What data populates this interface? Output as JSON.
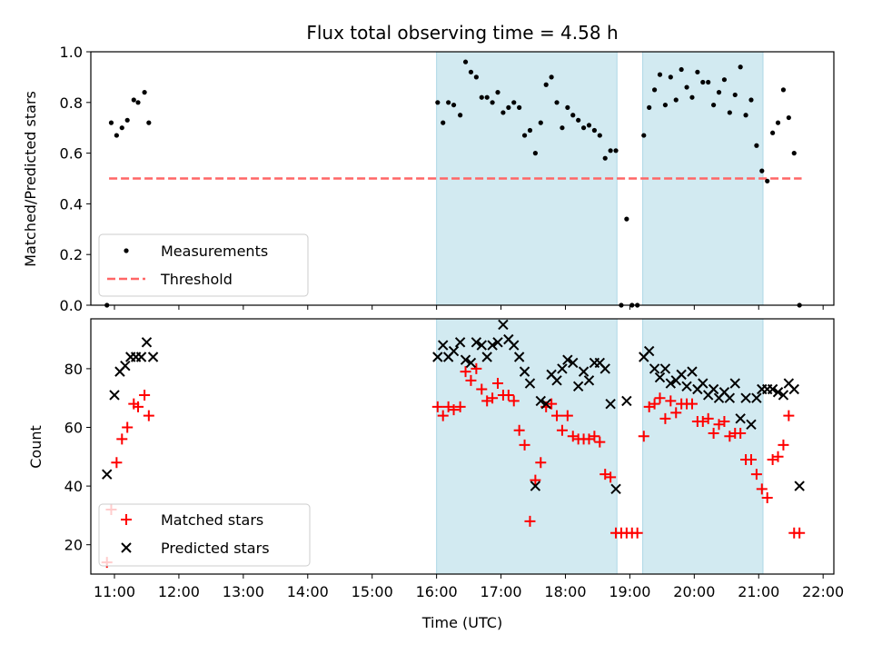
{
  "title": "Flux total observing time = 4.58 h",
  "colors": {
    "span": "#add8e6",
    "threshold": "#ff6666",
    "measurements": "#000000",
    "matched": "#ff0000",
    "predicted": "#000000"
  },
  "chart_data": [
    {
      "type": "scatter",
      "ylabel": "Matched/Predicted stars",
      "xlim": [
        "10:38",
        "22:10"
      ],
      "ylim": [
        0.0,
        1.0
      ],
      "yticks": [
        "0.0",
        "0.2",
        "0.4",
        "0.6",
        "0.8",
        "1.0"
      ],
      "legend": {
        "placement": "lower-left",
        "entries": [
          "Measurements",
          "Threshold"
        ]
      },
      "shaded_spans": [
        [
          "16:00",
          "18:48"
        ],
        [
          "19:12",
          "21:04"
        ]
      ],
      "threshold": {
        "value": 0.5,
        "x_range": [
          "10:55",
          "21:40"
        ]
      },
      "series": [
        {
          "name": "Measurements",
          "x": [
            "10:53",
            "10:57",
            "11:02",
            "11:07",
            "11:12",
            "11:18",
            "11:22",
            "11:28",
            "11:32",
            "16:01",
            "16:06",
            "16:11",
            "16:16",
            "16:22",
            "16:27",
            "16:32",
            "16:37",
            "16:42",
            "16:47",
            "16:52",
            "16:57",
            "17:02",
            "17:07",
            "17:12",
            "17:17",
            "17:22",
            "17:27",
            "17:32",
            "17:37",
            "17:42",
            "17:47",
            "17:52",
            "17:57",
            "18:02",
            "18:07",
            "18:12",
            "18:17",
            "18:22",
            "18:27",
            "18:32",
            "18:37",
            "18:42",
            "18:47",
            "18:52",
            "18:57",
            "19:02",
            "19:07",
            "19:13",
            "19:18",
            "19:23",
            "19:28",
            "19:33",
            "19:38",
            "19:43",
            "19:48",
            "19:53",
            "19:58",
            "20:03",
            "20:08",
            "20:13",
            "20:18",
            "20:23",
            "20:28",
            "20:33",
            "20:38",
            "20:43",
            "20:48",
            "20:53",
            "20:58",
            "21:03",
            "21:08",
            "21:13",
            "21:18",
            "21:23",
            "21:28",
            "21:33",
            "21:38"
          ],
          "y": [
            0.0,
            0.72,
            0.67,
            0.7,
            0.73,
            0.81,
            0.8,
            0.84,
            0.72,
            0.8,
            0.72,
            0.8,
            0.79,
            0.75,
            0.96,
            0.92,
            0.9,
            0.82,
            0.82,
            0.8,
            0.84,
            0.76,
            0.78,
            0.8,
            0.78,
            0.67,
            0.69,
            0.6,
            0.72,
            0.87,
            0.9,
            0.8,
            0.7,
            0.78,
            0.75,
            0.73,
            0.7,
            0.71,
            0.69,
            0.67,
            0.58,
            0.61,
            0.61,
            0.0,
            0.34,
            0.0,
            0.0,
            0.67,
            0.78,
            0.85,
            0.91,
            0.79,
            0.9,
            0.81,
            0.93,
            0.86,
            0.82,
            0.92,
            0.88,
            0.88,
            0.79,
            0.84,
            0.89,
            0.76,
            0.83,
            0.94,
            0.75,
            0.81,
            0.63,
            0.53,
            0.49,
            0.68,
            0.72,
            0.85,
            0.74,
            0.6,
            0.0
          ]
        }
      ]
    },
    {
      "type": "scatter",
      "xlabel": "Time (UTC)",
      "ylabel": "Count",
      "xlim": [
        "10:38",
        "22:10"
      ],
      "ylim": [
        10,
        97
      ],
      "yticks": [
        "20",
        "40",
        "60",
        "80"
      ],
      "xticks": [
        "11:00",
        "12:00",
        "13:00",
        "14:00",
        "15:00",
        "16:00",
        "17:00",
        "18:00",
        "19:00",
        "20:00",
        "21:00",
        "22:00"
      ],
      "legend": {
        "placement": "lower-left",
        "entries": [
          "Matched stars",
          "Predicted stars"
        ]
      },
      "shaded_spans": [
        [
          "16:00",
          "18:48"
        ],
        [
          "19:12",
          "21:04"
        ]
      ],
      "series": [
        {
          "name": "Matched stars",
          "marker": "+",
          "x": [
            "10:53",
            "10:57",
            "11:02",
            "11:07",
            "11:12",
            "11:18",
            "11:22",
            "11:28",
            "11:32",
            "16:01",
            "16:06",
            "16:11",
            "16:16",
            "16:22",
            "16:27",
            "16:32",
            "16:37",
            "16:42",
            "16:47",
            "16:52",
            "16:57",
            "17:02",
            "17:07",
            "17:12",
            "17:17",
            "17:22",
            "17:27",
            "17:32",
            "17:37",
            "17:42",
            "17:47",
            "17:52",
            "17:57",
            "18:02",
            "18:07",
            "18:12",
            "18:17",
            "18:22",
            "18:27",
            "18:32",
            "18:37",
            "18:42",
            "18:47",
            "18:52",
            "18:57",
            "19:02",
            "19:07",
            "19:13",
            "19:18",
            "19:23",
            "19:28",
            "19:33",
            "19:38",
            "19:43",
            "19:48",
            "19:53",
            "19:58",
            "20:03",
            "20:08",
            "20:13",
            "20:18",
            "20:23",
            "20:28",
            "20:33",
            "20:38",
            "20:43",
            "20:48",
            "20:53",
            "20:58",
            "21:03",
            "21:08",
            "21:13",
            "21:18",
            "21:23",
            "21:28",
            "21:33",
            "21:38"
          ],
          "y": [
            14,
            32,
            48,
            56,
            60,
            68,
            67,
            71,
            64,
            67,
            64,
            67,
            66,
            67,
            79,
            76,
            80,
            73,
            69,
            70,
            75,
            71,
            71,
            69,
            59,
            54,
            28,
            42,
            48,
            67,
            68,
            64,
            59,
            64,
            57,
            56,
            56,
            56,
            57,
            55,
            44,
            43,
            24,
            24,
            24,
            24,
            24,
            57,
            67,
            68,
            70,
            63,
            69,
            65,
            68,
            68,
            68,
            62,
            62,
            63,
            58,
            61,
            62,
            57,
            58,
            58,
            49,
            49,
            44,
            39,
            36,
            49,
            50,
            54,
            64,
            24,
            24
          ]
        },
        {
          "name": "Predicted stars",
          "marker": "x",
          "x": [
            "10:53",
            "11:00",
            "11:05",
            "11:10",
            "11:15",
            "11:20",
            "11:25",
            "11:30",
            "11:36",
            "16:01",
            "16:06",
            "16:11",
            "16:16",
            "16:22",
            "16:27",
            "16:32",
            "16:37",
            "16:42",
            "16:47",
            "16:52",
            "16:57",
            "17:02",
            "17:07",
            "17:12",
            "17:17",
            "17:22",
            "17:27",
            "17:32",
            "17:37",
            "17:42",
            "17:47",
            "17:52",
            "17:57",
            "18:02",
            "18:07",
            "18:12",
            "18:17",
            "18:22",
            "18:27",
            "18:32",
            "18:37",
            "18:42",
            "18:47",
            "18:57",
            "19:13",
            "19:18",
            "19:23",
            "19:28",
            "19:33",
            "19:38",
            "19:43",
            "19:48",
            "19:53",
            "19:58",
            "20:03",
            "20:08",
            "20:13",
            "20:18",
            "20:23",
            "20:28",
            "20:33",
            "20:38",
            "20:43",
            "20:48",
            "20:53",
            "20:58",
            "21:03",
            "21:08",
            "21:13",
            "21:18",
            "21:23",
            "21:28",
            "21:33",
            "21:38"
          ],
          "y": [
            44,
            71,
            79,
            81,
            84,
            84,
            84,
            89,
            84,
            84,
            88,
            84,
            86,
            89,
            83,
            82,
            89,
            88,
            84,
            88,
            89,
            95,
            90,
            88,
            84,
            79,
            75,
            40,
            69,
            68,
            78,
            76,
            80,
            83,
            82,
            74,
            79,
            76,
            82,
            82,
            80,
            68,
            39,
            69,
            84,
            86,
            80,
            77,
            80,
            75,
            76,
            78,
            74,
            79,
            73,
            75,
            71,
            73,
            70,
            72,
            70,
            75,
            63,
            70,
            61,
            70,
            73,
            73,
            73,
            72,
            71,
            75,
            73,
            40
          ]
        }
      ]
    }
  ]
}
